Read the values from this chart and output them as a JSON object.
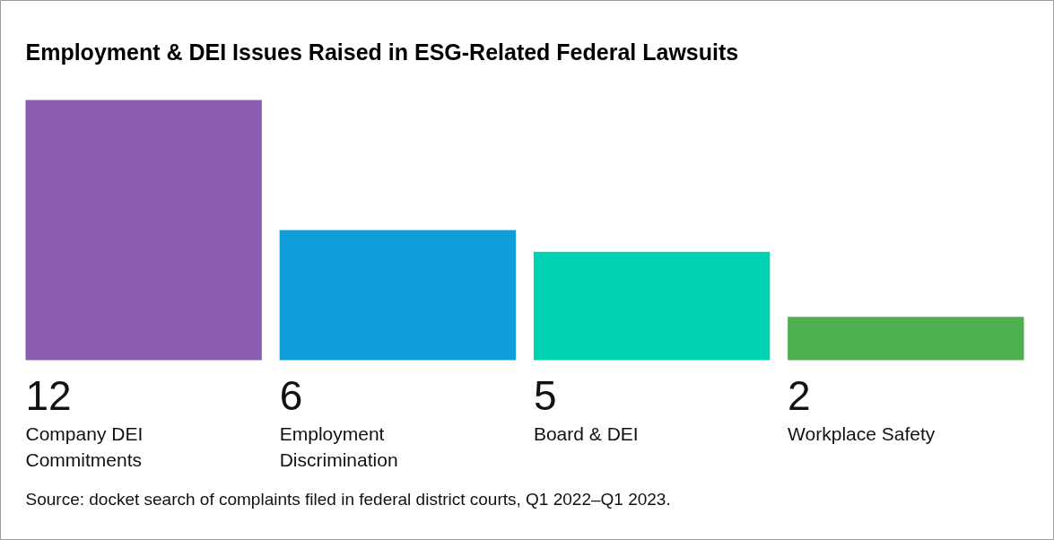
{
  "chart_data": {
    "type": "bar",
    "title": "Employment & DEI Issues Raised in ESG-Related Federal Lawsuits",
    "categories": [
      "Company DEI Commitments",
      "Employment Discrimination",
      "Board & DEI",
      "Workplace Safety"
    ],
    "values": [
      12,
      6,
      5,
      2
    ],
    "colors": [
      "#8a5db3",
      "#0f9ddb",
      "#00d1b2",
      "#4caf50"
    ],
    "data_labels": true,
    "annotations": [
      "Source: docket search of complaints filed in federal district courts, Q1 2022–Q1 2023."
    ]
  }
}
